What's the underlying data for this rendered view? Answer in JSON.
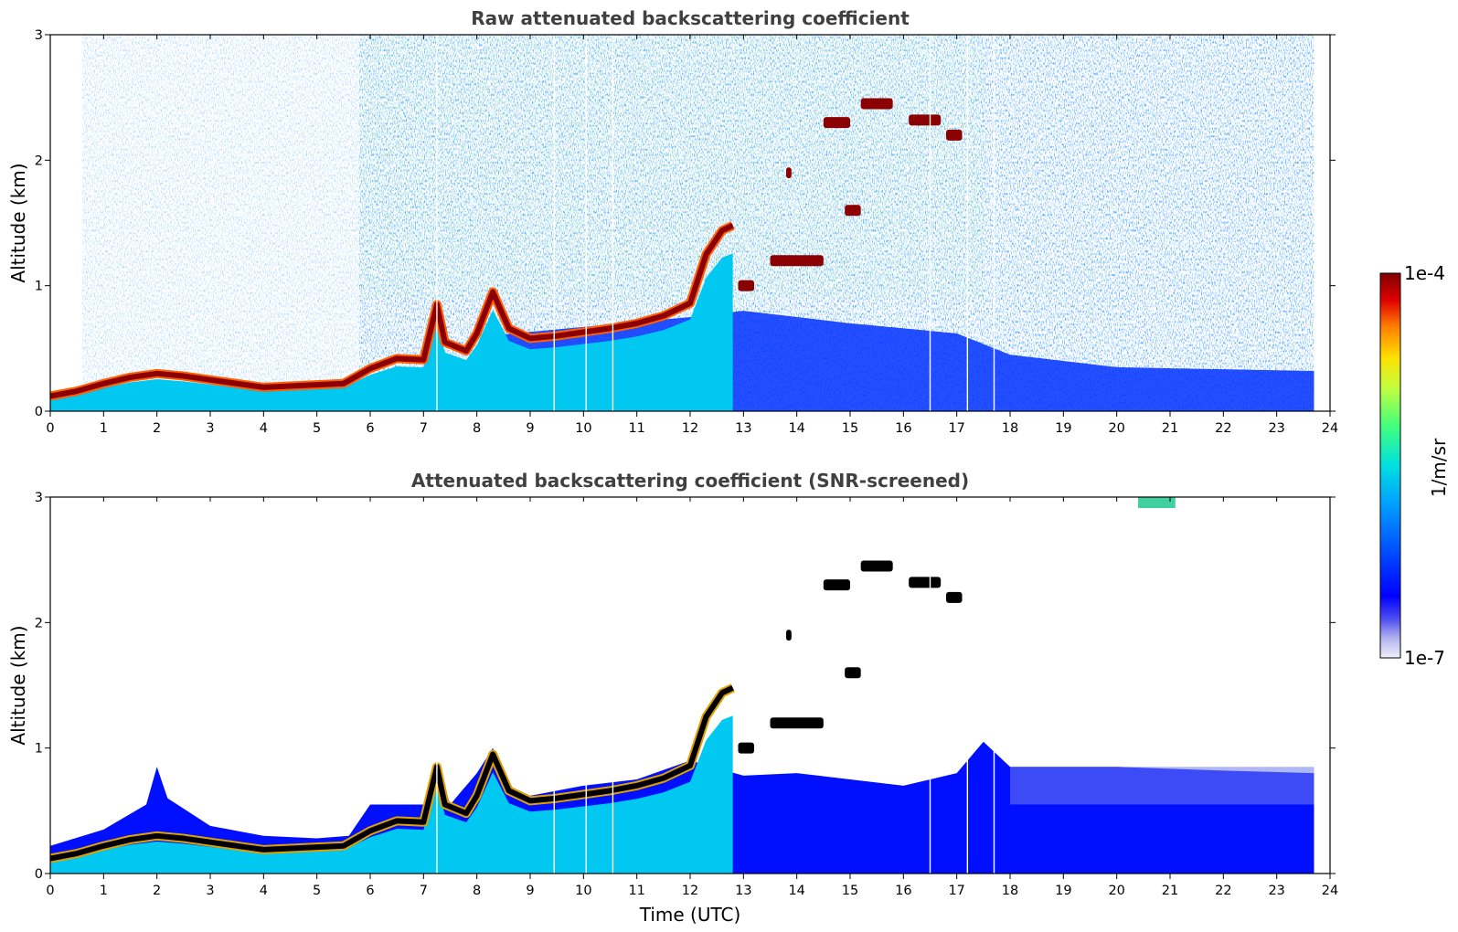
{
  "chart_data": [
    {
      "type": "heatmap",
      "title": "Raw attenuated backscattering coefficient",
      "xlabel": "",
      "ylabel": "Altitude (km)",
      "xlim": [
        0,
        24
      ],
      "ylim": [
        0,
        3
      ],
      "x_ticks": [
        "0",
        "1",
        "2",
        "3",
        "4",
        "5",
        "6",
        "7",
        "8",
        "9",
        "10",
        "11",
        "12",
        "13",
        "14",
        "15",
        "16",
        "17",
        "18",
        "19",
        "20",
        "21",
        "22",
        "23",
        "24"
      ],
      "y_ticks": [
        "0",
        "1",
        "2",
        "3"
      ],
      "data_end_hour": 23.7,
      "boundary_layer_top_km": [
        [
          0,
          0.12
        ],
        [
          0.5,
          0.16
        ],
        [
          1,
          0.22
        ],
        [
          1.5,
          0.27
        ],
        [
          2,
          0.3
        ],
        [
          2.5,
          0.28
        ],
        [
          3,
          0.25
        ],
        [
          3.5,
          0.22
        ],
        [
          4,
          0.19
        ],
        [
          4.5,
          0.2
        ],
        [
          5,
          0.21
        ],
        [
          5.5,
          0.22
        ],
        [
          6,
          0.34
        ],
        [
          6.5,
          0.42
        ],
        [
          7,
          0.41
        ],
        [
          7.25,
          0.85
        ],
        [
          7.4,
          0.55
        ],
        [
          7.8,
          0.48
        ],
        [
          8,
          0.62
        ],
        [
          8.3,
          0.95
        ],
        [
          8.6,
          0.66
        ],
        [
          9,
          0.58
        ],
        [
          9.5,
          0.6
        ],
        [
          10,
          0.63
        ],
        [
          10.5,
          0.66
        ],
        [
          11,
          0.7
        ],
        [
          11.5,
          0.76
        ],
        [
          12,
          0.86
        ],
        [
          12.3,
          1.25
        ],
        [
          12.6,
          1.44
        ],
        [
          12.8,
          1.48
        ]
      ],
      "cloud_layers_km": [
        {
          "start": 14.5,
          "end": 15.0,
          "alt": 2.3
        },
        {
          "start": 15.2,
          "end": 15.8,
          "alt": 2.45
        },
        {
          "start": 16.1,
          "end": 16.7,
          "alt": 2.32
        },
        {
          "start": 16.8,
          "end": 17.1,
          "alt": 2.2
        },
        {
          "start": 13.5,
          "end": 14.5,
          "alt": 1.2
        },
        {
          "start": 12.9,
          "end": 13.2,
          "alt": 1.0
        },
        {
          "start": 14.9,
          "end": 15.2,
          "alt": 1.6
        },
        {
          "start": 13.8,
          "end": 13.9,
          "alt": 1.9
        }
      ]
    },
    {
      "type": "heatmap",
      "title": "Attenuated backscattering coefficient (SNR-screened)",
      "xlabel": "Time (UTC)",
      "ylabel": "Altitude (km)",
      "xlim": [
        0,
        24
      ],
      "ylim": [
        0,
        3
      ],
      "x_ticks": [
        "0",
        "1",
        "2",
        "3",
        "4",
        "5",
        "6",
        "7",
        "8",
        "9",
        "10",
        "11",
        "12",
        "13",
        "14",
        "15",
        "16",
        "17",
        "18",
        "19",
        "20",
        "21",
        "22",
        "23",
        "24"
      ],
      "y_ticks": [
        "0",
        "1",
        "2",
        "3"
      ],
      "data_end_hour": 23.7,
      "screened_top_km": [
        [
          0,
          0.22
        ],
        [
          1,
          0.35
        ],
        [
          1.8,
          0.55
        ],
        [
          2,
          0.85
        ],
        [
          2.2,
          0.6
        ],
        [
          3,
          0.38
        ],
        [
          4,
          0.3
        ],
        [
          5,
          0.28
        ],
        [
          5.6,
          0.3
        ],
        [
          6,
          0.55
        ],
        [
          7,
          0.55
        ],
        [
          7.25,
          0.9
        ],
        [
          7.5,
          0.55
        ],
        [
          8,
          0.8
        ],
        [
          8.3,
          1.0
        ],
        [
          8.6,
          0.7
        ],
        [
          9,
          0.62
        ],
        [
          10,
          0.7
        ],
        [
          11,
          0.75
        ],
        [
          12,
          0.9
        ],
        [
          13,
          0.78
        ],
        [
          14,
          0.8
        ],
        [
          15,
          0.75
        ],
        [
          16,
          0.7
        ],
        [
          17,
          0.8
        ],
        [
          17.5,
          1.05
        ],
        [
          18,
          0.85
        ],
        [
          20,
          0.85
        ],
        [
          22,
          0.82
        ],
        [
          23.7,
          0.8
        ]
      ]
    }
  ],
  "colorbar": {
    "label": "1/m/sr",
    "max_label": "1e-4",
    "min_label": "1e-7",
    "colors": [
      "#f0f0fa",
      "#b4b4f0",
      "#5050f0",
      "#0000ff",
      "#0050ff",
      "#00a0ff",
      "#00e0e0",
      "#40ff80",
      "#c0ff40",
      "#ffe000",
      "#ff8000",
      "#e00000",
      "#800000"
    ]
  }
}
